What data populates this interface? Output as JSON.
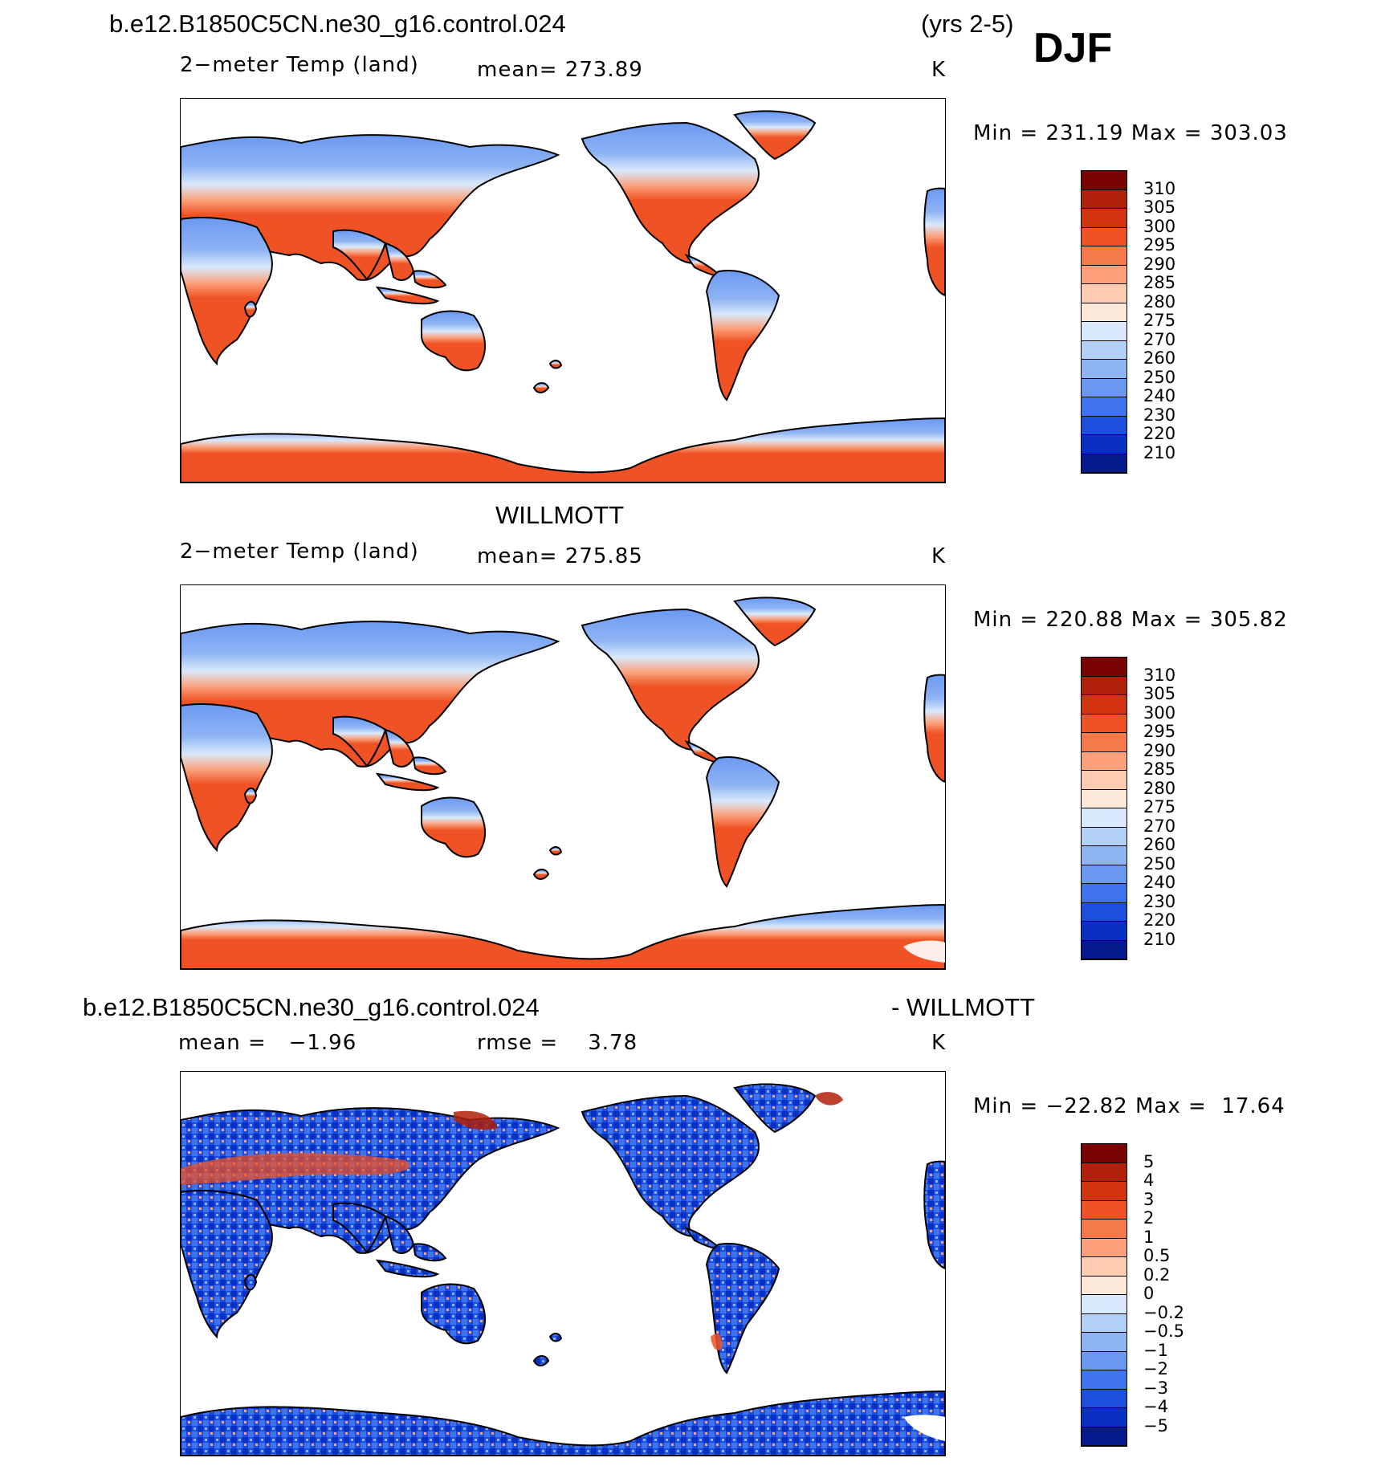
{
  "header": {
    "case_title": "b.e12.B1850C5CN.ne30_g16.control.024",
    "years": "(yrs 2-5)",
    "season": "DJF"
  },
  "panel1": {
    "variable": "2−meter Temp (land)",
    "mean_label": "mean=",
    "mean_value": "273.89",
    "units": "K",
    "min_label": "Min",
    "min_value": "231.19",
    "max_label": "Max",
    "max_value": "303.03",
    "eq": "="
  },
  "panel2": {
    "source_title": "WILLMOTT",
    "variable": "2−meter Temp (land)",
    "mean_label": "mean=",
    "mean_value": "275.85",
    "units": "K",
    "min_label": "Min",
    "min_value": "220.88",
    "max_label": "Max",
    "max_value": "305.82",
    "eq": "="
  },
  "panel3": {
    "case_title": "b.e12.B1850C5CN.ne30_g16.control.024",
    "diff_title": "- WILLMOTT",
    "mean_label": "mean =",
    "mean_value": "−1.96",
    "rmse_label": "rmse =",
    "rmse_value": "3.78",
    "units": "K",
    "min_label": "Min",
    "min_value": "−22.82",
    "max_label": "Max",
    "max_value": "17.64",
    "eq": "="
  },
  "temp_colorbar": {
    "labels": [
      "310",
      "305",
      "300",
      "295",
      "290",
      "285",
      "280",
      "275",
      "270",
      "260",
      "250",
      "240",
      "230",
      "220",
      "210"
    ],
    "colors": [
      "#7a0403",
      "#b0200a",
      "#d2330f",
      "#ef5224",
      "#f57a4a",
      "#fba07a",
      "#fdcbb0",
      "#fde9d9",
      "#d9e9fb",
      "#b3d0f7",
      "#8fb4f4",
      "#6b99f2",
      "#3f73ed",
      "#1a4fe0",
      "#0a2fc4",
      "#061a8c"
    ]
  },
  "diff_colorbar": {
    "labels": [
      "5",
      "4",
      "3",
      "2",
      "1",
      "0.5",
      "0.2",
      "0",
      "−0.2",
      "−0.5",
      "−1",
      "−2",
      "−3",
      "−4",
      "−5"
    ],
    "colors": [
      "#7a0403",
      "#b0200a",
      "#d2330f",
      "#ef5224",
      "#f57a4a",
      "#fba07a",
      "#fdcbb0",
      "#fde9d9",
      "#d9e9fb",
      "#b3d0f7",
      "#8fb4f4",
      "#6b99f2",
      "#3f73ed",
      "#1a4fe0",
      "#0a2fc4",
      "#061a8c"
    ]
  }
}
